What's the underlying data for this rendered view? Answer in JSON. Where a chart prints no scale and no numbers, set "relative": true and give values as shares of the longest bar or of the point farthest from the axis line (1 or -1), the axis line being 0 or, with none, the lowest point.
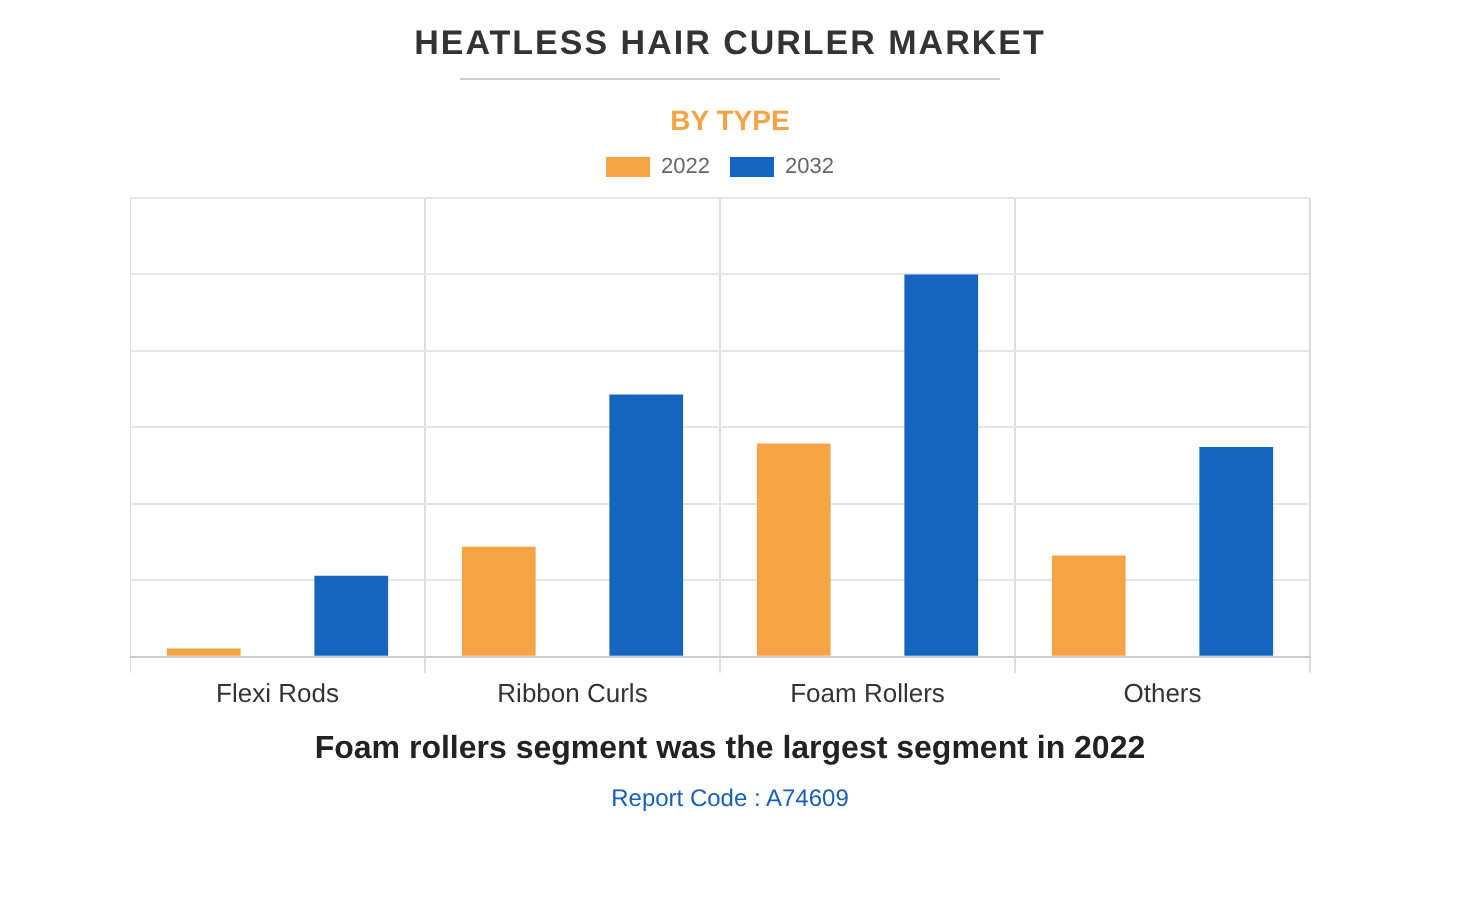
{
  "chart_data": {
    "type": "bar",
    "title": "HEATLESS HAIR CURLER MARKET",
    "subtitle": "BY TYPE",
    "categories": [
      "Flexi Rods",
      "Ribbon Curls",
      "Foam Rollers",
      "Others"
    ],
    "series": [
      {
        "name": "2022",
        "color": "#f4a444",
        "values": [
          0.022,
          0.288,
          0.558,
          0.265
        ]
      },
      {
        "name": "2032",
        "color": "#1565c0",
        "values": [
          0.212,
          0.686,
          1,
          0.549
        ]
      }
    ],
    "relative": true,
    "grid": true,
    "legend": "top",
    "annotations": [
      "Foam rollers segment was the largest segment in 2022",
      "Report Code : A74609"
    ]
  }
}
